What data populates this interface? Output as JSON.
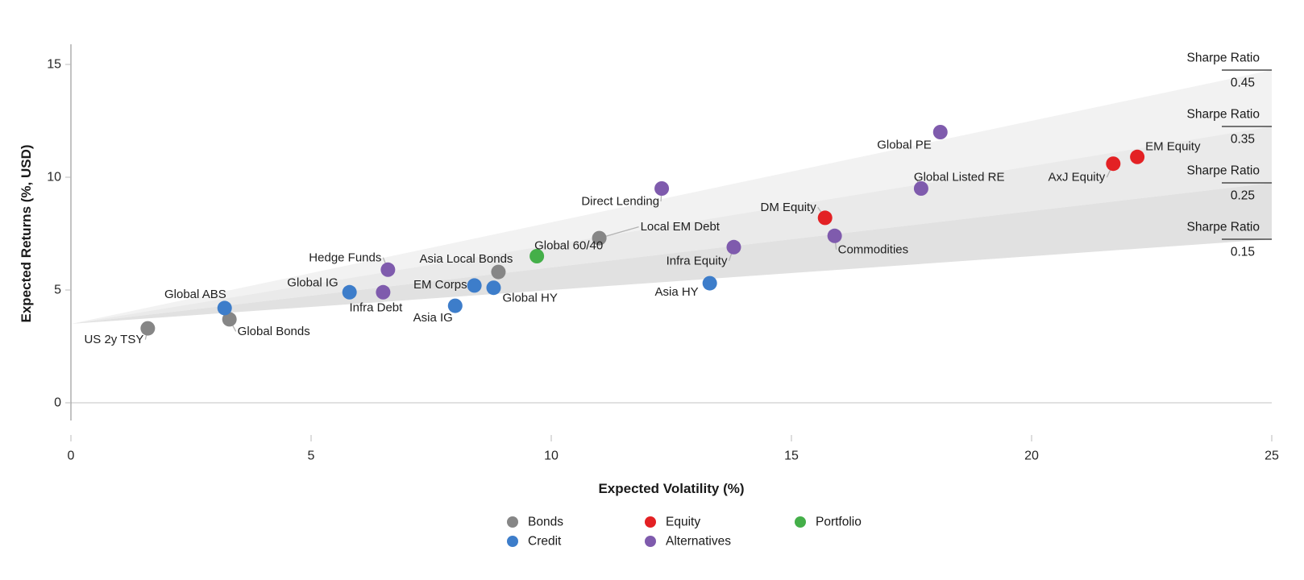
{
  "chart_data": {
    "type": "scatter",
    "title": "",
    "xlabel": "Expected Volatility (%)",
    "ylabel": "Expected Returns (%, USD)",
    "xlim": [
      0,
      25
    ],
    "ylim_shown": [
      0,
      15
    ],
    "xticks": [
      0,
      5,
      10,
      15,
      20,
      25
    ],
    "yticks": [
      0,
      5,
      10,
      15
    ],
    "grid": "horizontal zero line only",
    "legend_position": "bottom",
    "sharpe_bands": {
      "label": "Sharpe Ratio",
      "ratios": [
        0.45,
        0.35,
        0.25,
        0.15
      ],
      "apex_return": 3.5,
      "max_volatility": 25,
      "band_fills": [
        "#f2f2f2",
        "#eaeaea",
        "#e1e1e1"
      ],
      "rule_color": "#4a4a4a"
    },
    "series": [
      {
        "name": "Bonds",
        "color": "#868686",
        "points": [
          {
            "label": "US 2y TSY",
            "x": 1.6,
            "y": 3.3,
            "anchor": "end",
            "dx": -5,
            "dy": 14,
            "leader": true
          },
          {
            "label": "Global Bonds",
            "x": 3.3,
            "y": 3.7,
            "anchor": "start",
            "dx": 10,
            "dy": 15,
            "leader": true
          },
          {
            "label": "Asia Local Bonds",
            "x": 8.9,
            "y": 5.8,
            "anchor": "end",
            "dx": 18,
            "dy": -16,
            "leader": false
          },
          {
            "label": "Local EM Debt",
            "x": 11.0,
            "y": 7.3,
            "anchor": "start",
            "dx": 51,
            "dy": -14,
            "leader": true
          }
        ]
      },
      {
        "name": "Credit",
        "color": "#3d7dca",
        "points": [
          {
            "label": "Global ABS",
            "x": 3.2,
            "y": 4.2,
            "anchor": "end",
            "dx": 2,
            "dy": -17,
            "leader": false
          },
          {
            "label": "Global IG",
            "x": 5.8,
            "y": 4.9,
            "anchor": "end",
            "dx": -14,
            "dy": -12,
            "leader": false
          },
          {
            "label": "Asia IG",
            "x": 8.0,
            "y": 4.3,
            "anchor": "end",
            "dx": -3,
            "dy": 15,
            "leader": false
          },
          {
            "label": "EM Corps",
            "x": 8.4,
            "y": 5.2,
            "anchor": "end",
            "dx": -9,
            "dy": -1,
            "leader": false
          },
          {
            "label": "Global HY",
            "x": 8.8,
            "y": 5.1,
            "anchor": "start",
            "dx": 11,
            "dy": 13,
            "leader": false
          },
          {
            "label": "Asia HY",
            "x": 13.3,
            "y": 5.3,
            "anchor": "end",
            "dx": -14,
            "dy": 11,
            "leader": false
          }
        ]
      },
      {
        "name": "Equity",
        "color": "#e32124",
        "points": [
          {
            "label": "DM Equity",
            "x": 15.7,
            "y": 8.2,
            "anchor": "end",
            "dx": -11,
            "dy": -13,
            "leader": true
          },
          {
            "label": "AxJ Equity",
            "x": 21.7,
            "y": 10.6,
            "anchor": "end",
            "dx": -10,
            "dy": 17,
            "leader": true
          },
          {
            "label": "EM Equity",
            "x": 22.2,
            "y": 10.9,
            "anchor": "start",
            "dx": 10,
            "dy": -13,
            "leader": false
          }
        ]
      },
      {
        "name": "Alternatives",
        "color": "#7f5bad",
        "points": [
          {
            "label": "Infra Debt",
            "x": 6.5,
            "y": 4.9,
            "anchor": "middle",
            "dx": -9,
            "dy": 19,
            "leader": false
          },
          {
            "label": "Hedge Funds",
            "x": 6.6,
            "y": 5.9,
            "anchor": "end",
            "dx": -8,
            "dy": -15,
            "leader": true
          },
          {
            "label": "Direct Lending",
            "x": 12.3,
            "y": 9.5,
            "anchor": "end",
            "dx": -3,
            "dy": 16,
            "leader": true
          },
          {
            "label": "Infra Equity",
            "x": 13.8,
            "y": 6.9,
            "anchor": "end",
            "dx": -8,
            "dy": 17,
            "leader": true
          },
          {
            "label": "Commodities",
            "x": 15.9,
            "y": 7.4,
            "anchor": "start",
            "dx": 4,
            "dy": 17,
            "leader": true
          },
          {
            "label": "Global Listed RE",
            "x": 17.7,
            "y": 9.5,
            "anchor": "start",
            "dx": -9,
            "dy": -14,
            "leader": true
          },
          {
            "label": "Global PE",
            "x": 18.1,
            "y": 12.0,
            "anchor": "end",
            "dx": -11,
            "dy": 16,
            "leader": false
          }
        ]
      },
      {
        "name": "Portfolio",
        "color": "#44af49",
        "points": [
          {
            "label": "Global 60/40",
            "x": 9.7,
            "y": 6.5,
            "anchor": "start",
            "dx": -3,
            "dy": -13,
            "leader": false
          }
        ]
      }
    ],
    "legend": {
      "items": [
        {
          "label": "Bonds",
          "color": "#868686",
          "col": 0,
          "row": 0
        },
        {
          "label": "Credit",
          "color": "#3d7dca",
          "col": 0,
          "row": 1
        },
        {
          "label": "Equity",
          "color": "#e32124",
          "col": 1,
          "row": 0
        },
        {
          "label": "Alternatives",
          "color": "#7f5bad",
          "col": 1,
          "row": 1
        },
        {
          "label": "Portfolio",
          "color": "#44af49",
          "col": 2,
          "row": 0
        }
      ]
    }
  }
}
